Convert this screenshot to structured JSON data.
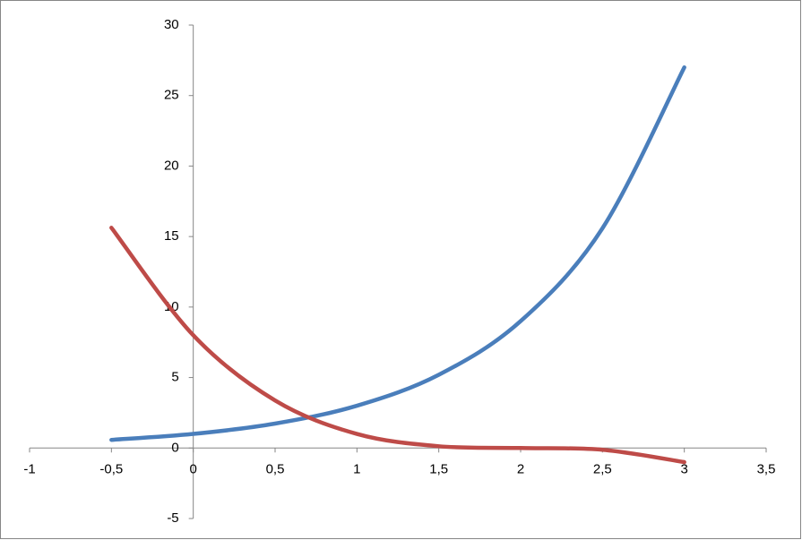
{
  "chart_data": {
    "type": "line",
    "x": [
      -0.5,
      0,
      0.5,
      1,
      1.5,
      2,
      2.5,
      3
    ],
    "series": [
      {
        "color": "#4a7ebb",
        "values": [
          0.577,
          1,
          1.732,
          3,
          5.196,
          9,
          15.588,
          27
        ]
      },
      {
        "color": "#be4b48",
        "values": [
          15.625,
          8,
          3.375,
          1,
          0.125,
          0,
          -0.125,
          -1
        ]
      }
    ],
    "xlim": [
      -1,
      3.5
    ],
    "xticks": [
      -1,
      {
        "value": -0.5,
        "label": "-0,5"
      },
      0,
      {
        "value": 0.5,
        "label": "0,5"
      },
      1,
      {
        "value": 1.5,
        "label": "1,5"
      },
      2,
      {
        "value": 2.5,
        "label": "2,5"
      },
      3,
      {
        "value": 3.5,
        "label": "3,5"
      }
    ],
    "ylim": [
      -5,
      30
    ],
    "yticks": [
      -5,
      0,
      5,
      10,
      15,
      20,
      25,
      30
    ],
    "grid": false
  }
}
